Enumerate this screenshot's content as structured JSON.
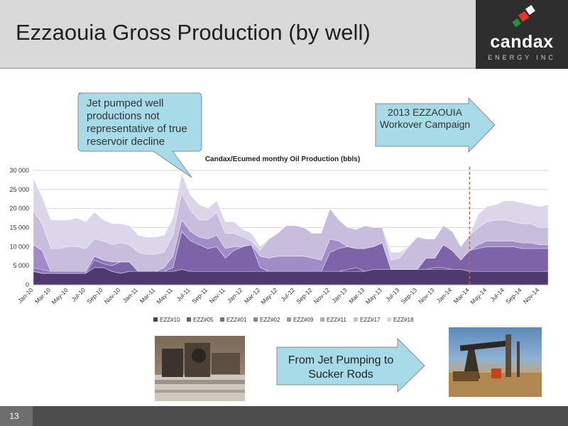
{
  "slide": {
    "title": "Ezzaouia Gross Production (by well)",
    "page_number": "13"
  },
  "logo": {
    "name": "candax",
    "sub": "ENERGY INC"
  },
  "callouts": {
    "jet_pumped": "Jet pumped well productions not representative of true reservoir decline",
    "campaign": "2013 EZZAOUIA Workover Campaign",
    "sucker_rods": "From Jet Pumping to Sucker Rods"
  },
  "colors": {
    "callout_fill": "#a8dbe8",
    "callout_stroke": "#8a8a8a",
    "campaign_line": "#d9651f",
    "header_bg": "#d9d9d9",
    "logo_bg": "#2e2e2e",
    "footer_bg": "#4d4d4d"
  },
  "chart_data": {
    "type": "area",
    "stacked": true,
    "title": "Candax/Ecumed monthy Oil Production (bbls)",
    "xlabel": "",
    "ylabel": "",
    "ylim": [
      0,
      30000
    ],
    "yticks": [
      0,
      5000,
      10000,
      15000,
      20000,
      25000,
      30000
    ],
    "ytick_labels": [
      "0",
      "5 000",
      "10 000",
      "15 000",
      "20 000",
      "25 000",
      "30 000"
    ],
    "grid": true,
    "legend_position": "bottom",
    "campaign_marker_x": "Mar-14",
    "x": [
      "Jan-10",
      "Feb-10",
      "Mar-10",
      "Apr-10",
      "May-10",
      "Jun-10",
      "Jul-10",
      "Aug-10",
      "Sep-10",
      "Oct-10",
      "Nov-10",
      "Dec-10",
      "Jan-11",
      "Feb-11",
      "Mar-11",
      "Apr-11",
      "May-11",
      "Jun-11",
      "Jul-11",
      "Aug-11",
      "Sep-11",
      "Oct-11",
      "Nov-11",
      "Dec-11",
      "Jan-12",
      "Feb-12",
      "Mar-12",
      "Apr-12",
      "May-12",
      "Jun-12",
      "Jul-12",
      "Aug-12",
      "Sep-12",
      "Oct-12",
      "Nov-12",
      "Dec-12",
      "Jan-13",
      "Feb-13",
      "Mar-13",
      "Apr-13",
      "May-13",
      "Jun-13",
      "Jul-13",
      "Aug-13",
      "Sep-13",
      "Oct-13",
      "Nov-13",
      "Dec-13",
      "Jan-14",
      "Feb-14",
      "Mar-14",
      "Apr-14",
      "May-14",
      "Jun-14",
      "Jul-14",
      "Aug-14",
      "Sep-14",
      "Oct-14",
      "Nov-14",
      "Dec-14"
    ],
    "x_tick_labels": [
      "Jan-10",
      "Mar-10",
      "May-10",
      "Jul-10",
      "Sep-10",
      "Nov-10",
      "Jan-11",
      "Mar-11",
      "May-11",
      "Jul-11",
      "Sep-11",
      "Nov-11",
      "Jan-12",
      "Mar-12",
      "May-12",
      "Jul-12",
      "Sep-12",
      "Nov-12",
      "Jan-13",
      "Mar-13",
      "May-13",
      "Jul-13",
      "Sep-13",
      "Nov-13",
      "Jan-14",
      "Mar-14",
      "May-14",
      "Jul-14",
      "Sep-14",
      "Nov-14"
    ],
    "series": [
      {
        "name": "EZZ#10",
        "color": "#4e3a6e",
        "values": [
          3500,
          3000,
          3000,
          3000,
          3000,
          3000,
          3000,
          4500,
          4500,
          3500,
          3000,
          3500,
          3500,
          3500,
          3500,
          3500,
          3500,
          4000,
          3500,
          3500,
          3500,
          3500,
          3500,
          3500,
          3500,
          3500,
          3500,
          3500,
          3500,
          3500,
          3500,
          3500,
          3500,
          3500,
          3500,
          3500,
          3500,
          3500,
          3500,
          4000,
          4000,
          4000,
          4000,
          4000,
          4000,
          4000,
          4000,
          4000,
          4000,
          4000,
          3500,
          3500,
          3500,
          3500,
          3500,
          3500,
          3500,
          3500,
          3500,
          3500
        ]
      },
      {
        "name": "EZZ#05",
        "color": "#6a5296",
        "values": [
          0,
          0,
          0,
          0,
          0,
          0,
          0,
          0,
          0,
          0,
          0,
          0,
          0,
          0,
          0,
          0,
          0,
          0,
          0,
          0,
          0,
          0,
          0,
          0,
          0,
          0,
          0,
          0,
          0,
          0,
          0,
          0,
          0,
          0,
          0,
          0,
          500,
          1000,
          0,
          0,
          0,
          0,
          0,
          0,
          0,
          0,
          500,
          500,
          0,
          0,
          0,
          0,
          0,
          0,
          0,
          0,
          0,
          0,
          0,
          0
        ]
      },
      {
        "name": "EZZ#01",
        "color": "#7d63a8",
        "values": [
          0,
          0,
          0,
          0,
          0,
          0,
          0,
          2000,
          1000,
          1500,
          3000,
          2500,
          0,
          0,
          0,
          0,
          1000,
          10000,
          8000,
          7000,
          6000,
          6500,
          3500,
          5500,
          6500,
          7000,
          1000,
          0,
          0,
          0,
          0,
          0,
          0,
          0,
          5000,
          6000,
          6000,
          5000,
          6000,
          6000,
          7000,
          0,
          0,
          0,
          0,
          3000,
          2500,
          6000,
          5000,
          2500,
          5500,
          6000,
          6500,
          6500,
          6500,
          6500,
          6000,
          6000,
          6000,
          6000
        ]
      },
      {
        "name": "EZZ#02",
        "color": "#8f77b8",
        "values": [
          1000,
          1000,
          500,
          500,
          500,
          500,
          500,
          1000,
          1000,
          1000,
          0,
          0,
          0,
          0,
          0,
          0,
          0,
          0,
          0,
          0,
          0,
          0,
          0,
          0,
          0,
          0,
          0,
          0,
          0,
          0,
          0,
          0,
          0,
          0,
          0,
          0,
          0,
          0,
          0,
          0,
          0,
          0,
          0,
          0,
          0,
          0,
          0,
          0,
          0,
          0,
          0,
          0,
          0,
          0,
          0,
          0,
          0,
          0,
          0,
          0
        ]
      },
      {
        "name": "EZZ#09",
        "color": "#a08cc6",
        "values": [
          6000,
          5000,
          0,
          0,
          0,
          0,
          0,
          0,
          0,
          0,
          0,
          0,
          0,
          0,
          0,
          1000,
          3000,
          3000,
          2500,
          2000,
          2500,
          3000,
          2500,
          1000,
          0,
          0,
          3000,
          3500,
          4000,
          4000,
          4000,
          4000,
          3500,
          3000,
          3500,
          2000,
          0,
          0,
          0,
          0,
          0,
          0,
          0,
          0,
          0,
          0,
          0,
          0,
          0,
          0,
          0,
          1000,
          1500,
          1500,
          1500,
          1500,
          1500,
          1500,
          1000,
          1000
        ]
      },
      {
        "name": "EZZ#11",
        "color": "#b3a6d1",
        "values": [
          0,
          0,
          0,
          0,
          0,
          0,
          0,
          0,
          0,
          0,
          0,
          0,
          0,
          0,
          0,
          0,
          0,
          0,
          0,
          0,
          0,
          0,
          0,
          0,
          0,
          0,
          0,
          0,
          0,
          0,
          0,
          0,
          0,
          0,
          0,
          0,
          0,
          0,
          0,
          0,
          0,
          0,
          0,
          0,
          0,
          0,
          0,
          0,
          0,
          0,
          0,
          0,
          0,
          0,
          0,
          0,
          0,
          0,
          0,
          0
        ]
      },
      {
        "name": "EZZ#17",
        "color": "#c7bddd",
        "values": [
          9000,
          7000,
          6000,
          6000,
          6500,
          6500,
          6000,
          4500,
          5000,
          4500,
          5000,
          4500,
          5000,
          4500,
          4500,
          4000,
          5500,
          7000,
          5500,
          4500,
          5000,
          6000,
          4000,
          3500,
          2500,
          1000,
          1500,
          5000,
          6000,
          8000,
          8000,
          7500,
          6500,
          7000,
          8000,
          5500,
          5000,
          5000,
          6000,
          5000,
          4000,
          2500,
          3000,
          6000,
          8500,
          5000,
          5000,
          5000,
          5000,
          3500,
          4000,
          4500,
          5000,
          5500,
          5500,
          5000,
          5000,
          5000,
          4500,
          4500
        ]
      },
      {
        "name": "EZZ#18",
        "color": "#dcd6ea",
        "values": [
          8500,
          7000,
          7500,
          7500,
          7000,
          7500,
          7000,
          7000,
          5500,
          5500,
          5000,
          5000,
          4500,
          4500,
          4500,
          4500,
          4500,
          5000,
          4000,
          4000,
          3000,
          3000,
          3000,
          3000,
          2000,
          2000,
          1000,
          0,
          0,
          0,
          0,
          0,
          0,
          0,
          0,
          0,
          0,
          0,
          0,
          0,
          0,
          2000,
          1500,
          0,
          0,
          0,
          0,
          0,
          0,
          0,
          0,
          3500,
          4000,
          4000,
          5000,
          5500,
          5500,
          5000,
          5500,
          6000
        ]
      }
    ]
  }
}
